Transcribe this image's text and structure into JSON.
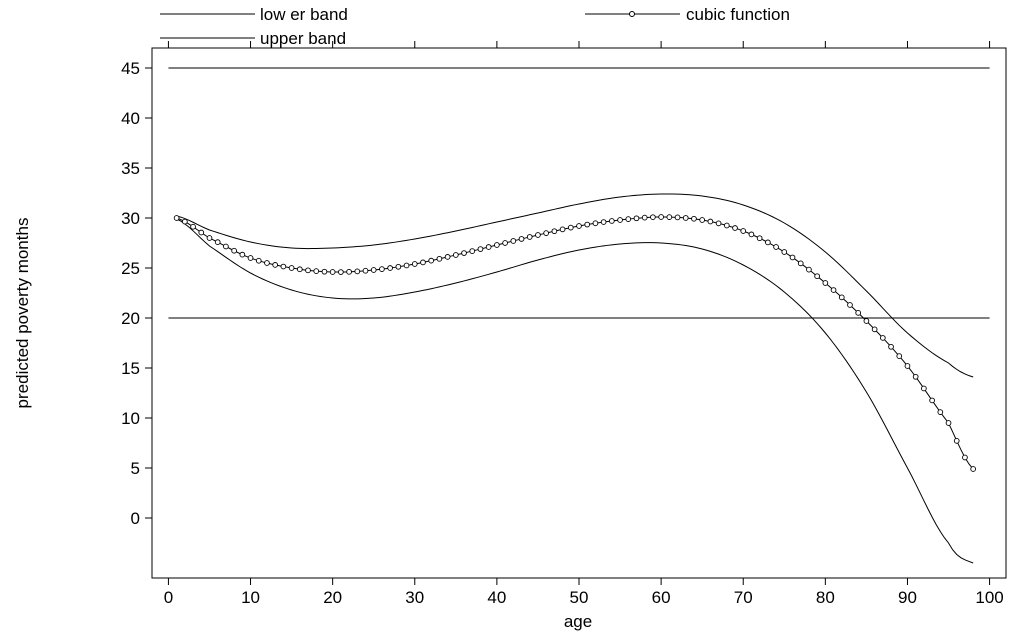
{
  "chart_data": {
    "type": "line",
    "title": "",
    "xlabel": "age",
    "ylabel": "predicted poverty months",
    "xlim": [
      -2,
      102
    ],
    "ylim": [
      -6,
      47
    ],
    "x_ticks": [
      0,
      10,
      20,
      30,
      40,
      50,
      60,
      70,
      80,
      90,
      100
    ],
    "y_ticks": [
      0,
      5,
      10,
      15,
      20,
      25,
      30,
      35,
      40,
      45
    ],
    "grid": false,
    "legend_placement": "top",
    "series": [
      {
        "name": "low er band",
        "marker": "none",
        "x": [
          1,
          5,
          10,
          15,
          20,
          25,
          30,
          35,
          40,
          45,
          50,
          55,
          60,
          65,
          70,
          75,
          80,
          85,
          90,
          95,
          98
        ],
        "values": [
          29.9,
          27.2,
          24.5,
          22.8,
          22.0,
          22.0,
          22.6,
          23.5,
          24.6,
          25.8,
          26.8,
          27.4,
          27.5,
          26.9,
          25.3,
          22.6,
          18.5,
          12.6,
          5.0,
          -2.5,
          -4.5
        ]
      },
      {
        "name": "upper band",
        "marker": "none",
        "x": [
          1,
          5,
          10,
          15,
          20,
          25,
          30,
          35,
          40,
          45,
          50,
          55,
          60,
          65,
          70,
          75,
          80,
          85,
          90,
          95,
          98
        ],
        "values": [
          30.2,
          28.8,
          27.6,
          27.0,
          27.0,
          27.3,
          27.9,
          28.7,
          29.6,
          30.5,
          31.4,
          32.1,
          32.4,
          32.2,
          31.3,
          29.5,
          26.6,
          22.7,
          18.5,
          15.5,
          14.1
        ]
      },
      {
        "name": "cubic function",
        "marker": "circle",
        "x": [
          1,
          5,
          10,
          15,
          20,
          25,
          30,
          35,
          40,
          45,
          50,
          55,
          60,
          65,
          70,
          75,
          80,
          85,
          90,
          95,
          98
        ],
        "values": [
          30.0,
          28.0,
          26.0,
          25.0,
          24.6,
          24.8,
          25.4,
          26.3,
          27.3,
          28.3,
          29.2,
          29.8,
          30.1,
          29.8,
          28.7,
          26.6,
          23.5,
          19.7,
          15.2,
          9.5,
          4.9
        ]
      },
      {
        "name": "",
        "marker": "none",
        "x": [
          0,
          100
        ],
        "values": [
          45,
          45
        ]
      },
      {
        "name": "",
        "marker": "none",
        "x": [
          0,
          100
        ],
        "values": [
          20,
          20
        ]
      }
    ]
  }
}
